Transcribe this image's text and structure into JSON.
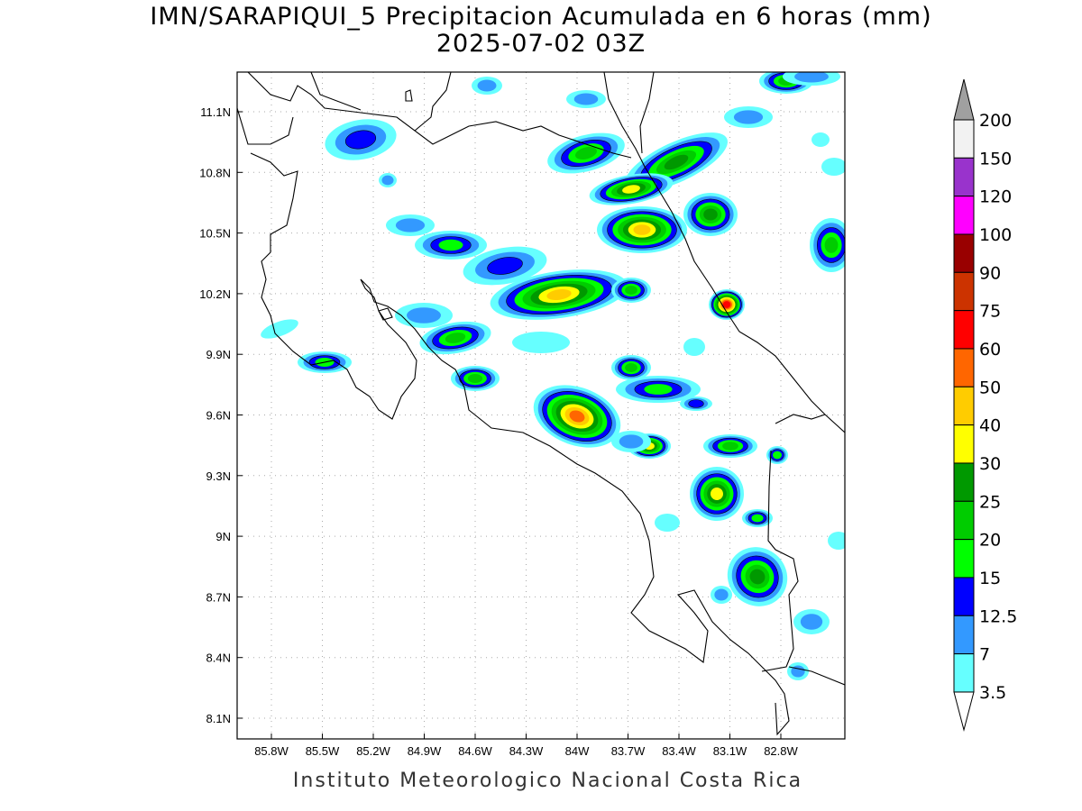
{
  "title": {
    "line1": "IMN/SARAPIQUI_5 Precipitacion Acumulada en 6 horas (mm)",
    "line2": "2025-07-02 03Z"
  },
  "footer": "Instituto Meteorologico Nacional Costa Rica",
  "map": {
    "lon_ticks": [
      "85.8W",
      "85.5W",
      "85.2W",
      "84.9W",
      "84.6W",
      "84.3W",
      "84W",
      "83.7W",
      "83.4W",
      "83.1W",
      "82.8W"
    ],
    "lat_ticks": [
      "11.1N",
      "10.8N",
      "10.5N",
      "10.2N",
      "9.9N",
      "9.6N",
      "9.3N",
      "9N",
      "8.7N",
      "8.4N",
      "8.1N"
    ],
    "lon_range": [
      -85.97,
      -82.6
    ],
    "lat_range": [
      8.02,
      11.3
    ]
  },
  "colorbar": {
    "labels": [
      "200",
      "150",
      "120",
      "100",
      "90",
      "75",
      "60",
      "50",
      "40",
      "30",
      "25",
      "20",
      "15",
      "12.5",
      "7",
      "3.5"
    ],
    "colors": [
      "#f2f2f2",
      "#9933cc",
      "#ff00ff",
      "#990000",
      "#cc3300",
      "#ff0000",
      "#ff6600",
      "#ffcc00",
      "#ffff00",
      "#009900",
      "#00cc00",
      "#00ff00",
      "#0000ff",
      "#3399ff",
      "#66ffff"
    ],
    "over_color": "#a0a0a0",
    "under_color": "#ffffff"
  }
}
